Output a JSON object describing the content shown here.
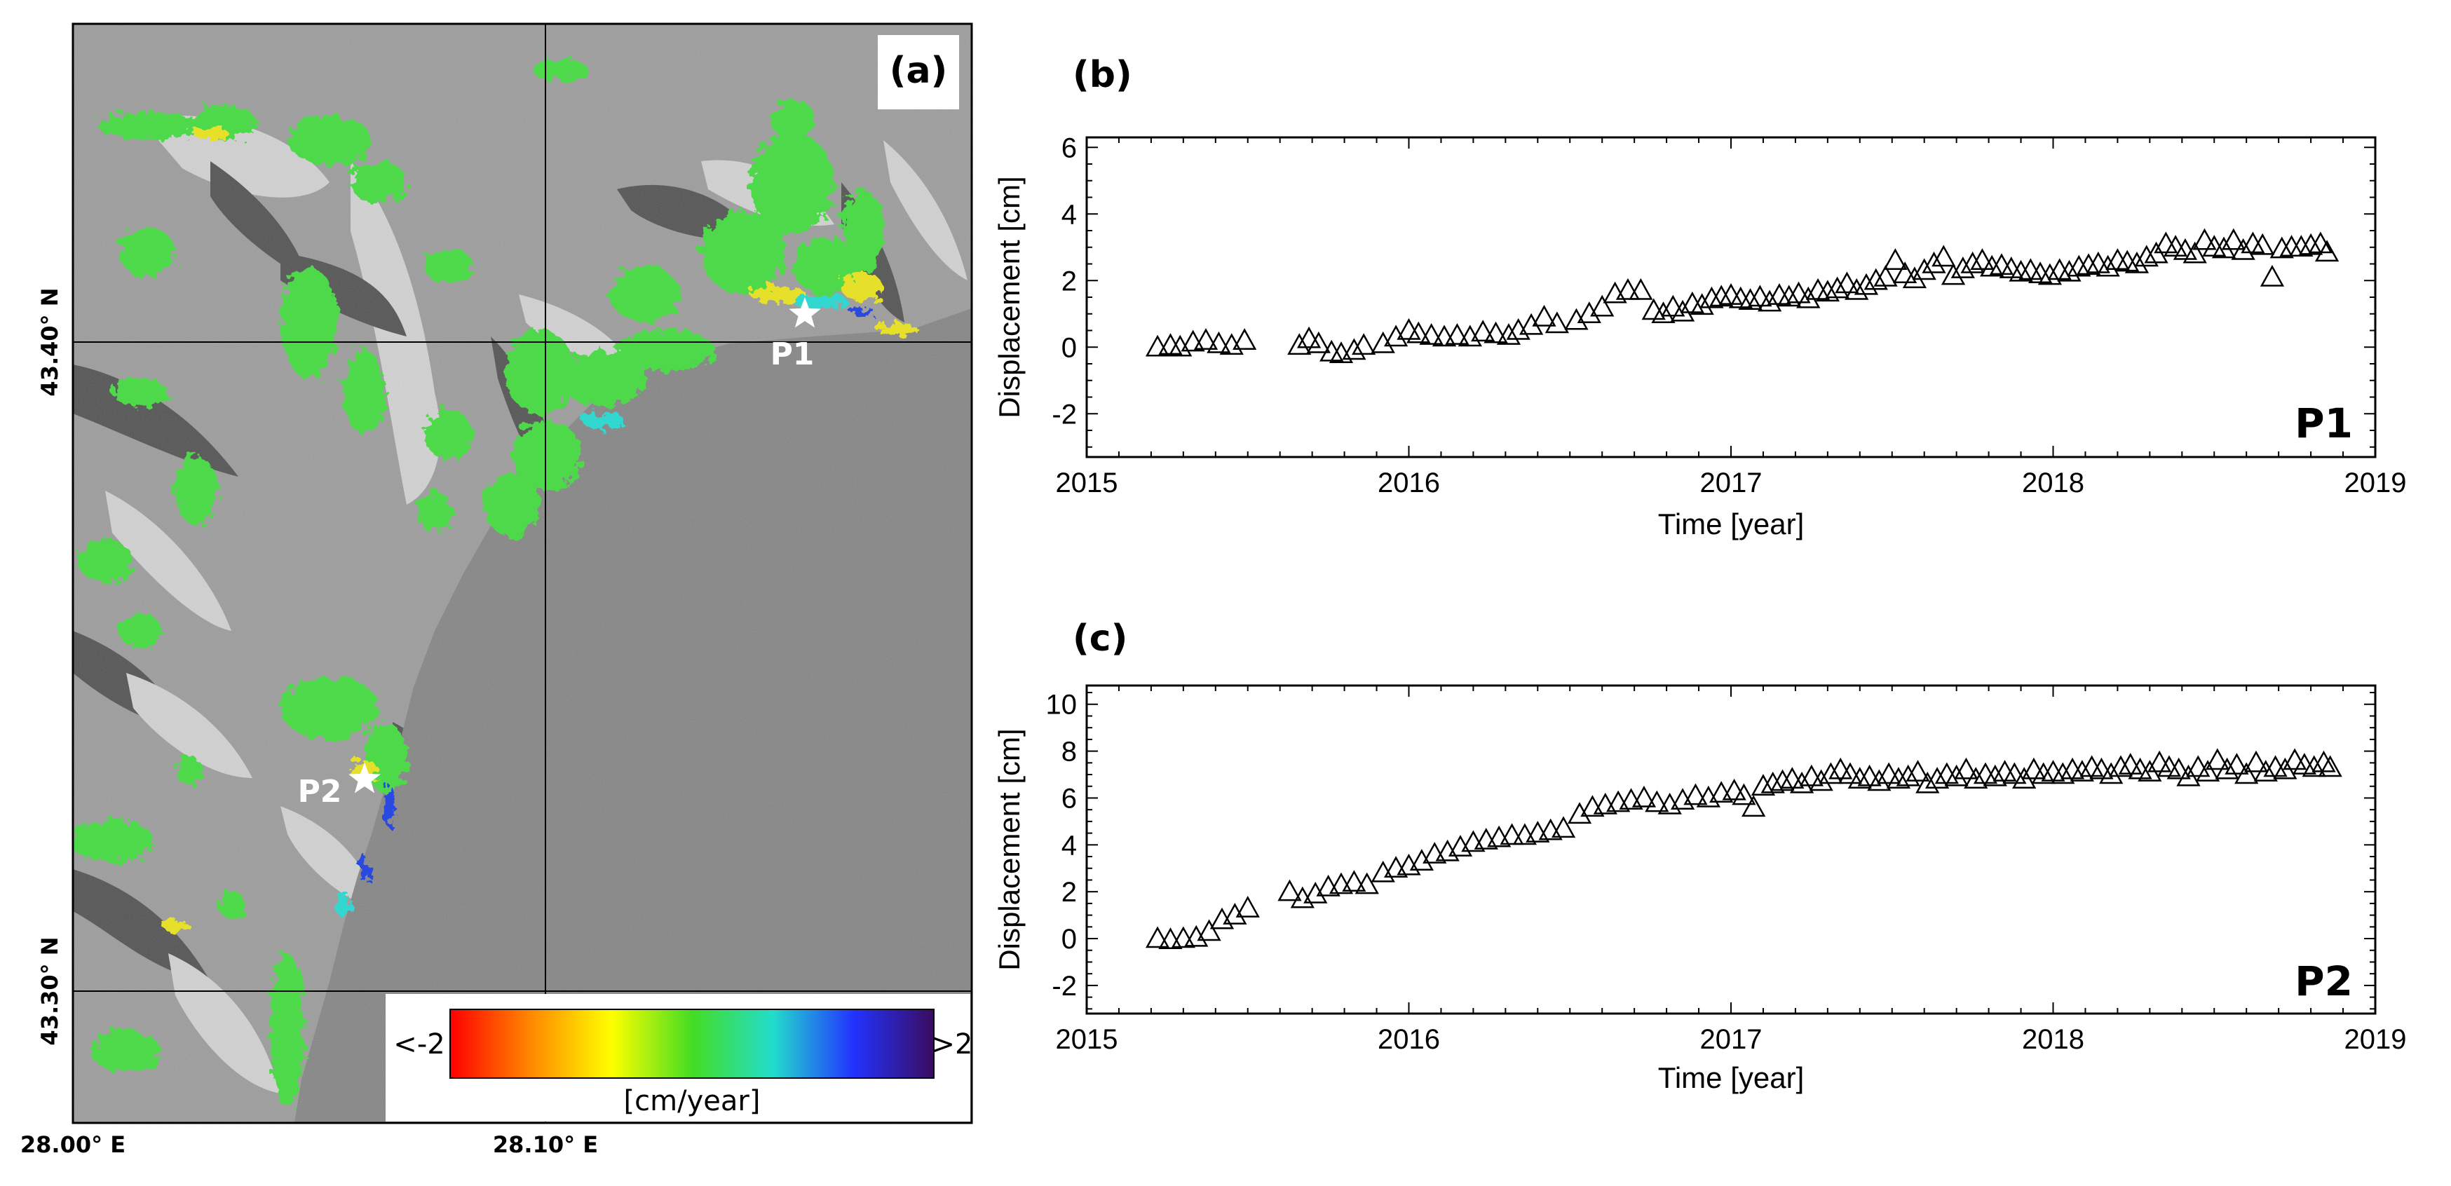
{
  "figure": {
    "map": {
      "panel_label": "(a)",
      "lat_labels": [
        "43.40° N",
        "43.30° N"
      ],
      "lon_labels": [
        "28.00° E",
        "28.10° E"
      ],
      "points": [
        {
          "name": "P1",
          "color": "#ffffff"
        },
        {
          "name": "P2",
          "color": "#ffffff"
        }
      ],
      "colorbar": {
        "min_label": "<-2",
        "max_label": ">2",
        "unit": "[cm/year]",
        "colors": [
          "#ff0000",
          "#ff8800",
          "#ffff00",
          "#44dd22",
          "#22ddcc",
          "#2233ff",
          "#3a0c60"
        ]
      },
      "colors": {
        "sea": "#858585",
        "land": "#9c9c9c",
        "shade_light": "#d8d8d8",
        "shade_dark": "#4a4a4a",
        "velocity_green": "#4ed94a",
        "velocity_yellow": "#e6e02a",
        "velocity_cyan": "#30d8d0",
        "velocity_blue": "#2a4ae0"
      }
    }
  },
  "chart_data": [
    {
      "type": "scatter",
      "panel_label": "(b)",
      "point_label": "P1",
      "marker": "open-triangle",
      "title": "",
      "xlabel": "Time [year]",
      "ylabel": "Displacement [cm]",
      "xlim": [
        2015,
        2019
      ],
      "ylim": [
        -3.3,
        6.3
      ],
      "xticks": [
        2015,
        2016,
        2017,
        2018,
        2019
      ],
      "yticks": [
        -2,
        0,
        2,
        4,
        6
      ],
      "grid": false,
      "x": [
        2015.22,
        2015.26,
        2015.29,
        2015.33,
        2015.37,
        2015.41,
        2015.45,
        2015.49,
        2015.66,
        2015.69,
        2015.72,
        2015.76,
        2015.79,
        2015.83,
        2015.86,
        2015.92,
        2015.96,
        2016.0,
        2016.03,
        2016.07,
        2016.11,
        2016.15,
        2016.19,
        2016.23,
        2016.27,
        2016.31,
        2016.34,
        2016.38,
        2016.42,
        2016.46,
        2016.52,
        2016.56,
        2016.6,
        2016.64,
        2016.68,
        2016.72,
        2016.76,
        2016.79,
        2016.82,
        2016.85,
        2016.88,
        2016.91,
        2016.94,
        2016.97,
        2017.0,
        2017.03,
        2017.06,
        2017.09,
        2017.12,
        2017.15,
        2017.18,
        2017.21,
        2017.24,
        2017.27,
        2017.3,
        2017.33,
        2017.36,
        2017.39,
        2017.42,
        2017.45,
        2017.48,
        2017.51,
        2017.54,
        2017.57,
        2017.6,
        2017.63,
        2017.66,
        2017.69,
        2017.72,
        2017.75,
        2017.78,
        2017.81,
        2017.84,
        2017.87,
        2017.9,
        2017.93,
        2017.96,
        2017.99,
        2018.02,
        2018.05,
        2018.08,
        2018.11,
        2018.14,
        2018.17,
        2018.2,
        2018.23,
        2018.26,
        2018.29,
        2018.32,
        2018.35,
        2018.38,
        2018.41,
        2018.44,
        2018.47,
        2018.5,
        2018.53,
        2018.56,
        2018.59,
        2018.62,
        2018.65,
        2018.68,
        2018.71,
        2018.74,
        2018.77,
        2018.8,
        2018.83,
        2018.85
      ],
      "y": [
        0.0,
        0.05,
        0.0,
        0.15,
        0.2,
        0.1,
        0.05,
        0.2,
        0.05,
        0.25,
        0.1,
        -0.15,
        -0.2,
        -0.1,
        0.05,
        0.1,
        0.3,
        0.5,
        0.4,
        0.35,
        0.3,
        0.35,
        0.3,
        0.45,
        0.4,
        0.35,
        0.5,
        0.65,
        0.9,
        0.7,
        0.8,
        1.0,
        1.2,
        1.6,
        1.7,
        1.7,
        1.1,
        1.0,
        1.2,
        1.05,
        1.3,
        1.25,
        1.45,
        1.5,
        1.55,
        1.45,
        1.4,
        1.5,
        1.35,
        1.55,
        1.5,
        1.6,
        1.45,
        1.7,
        1.65,
        1.75,
        1.9,
        1.7,
        1.85,
        2.0,
        2.1,
        2.6,
        2.2,
        2.05,
        2.3,
        2.5,
        2.7,
        2.15,
        2.35,
        2.5,
        2.6,
        2.4,
        2.45,
        2.35,
        2.25,
        2.3,
        2.2,
        2.15,
        2.3,
        2.25,
        2.4,
        2.45,
        2.5,
        2.4,
        2.6,
        2.55,
        2.5,
        2.7,
        2.8,
        3.1,
        3.0,
        2.9,
        2.8,
        3.2,
        3.0,
        2.95,
        3.2,
        2.9,
        3.1,
        3.05,
        2.1,
        2.95,
        3.0,
        3.0,
        3.05,
        3.1,
        2.85
      ]
    },
    {
      "type": "scatter",
      "panel_label": "(c)",
      "point_label": "P2",
      "marker": "open-triangle",
      "title": "",
      "xlabel": "Time [year]",
      "ylabel": "Displacement [cm]",
      "xlim": [
        2015,
        2019
      ],
      "ylim": [
        -3.2,
        10.8
      ],
      "xticks": [
        2015,
        2016,
        2017,
        2018,
        2019
      ],
      "yticks": [
        -2,
        0,
        2,
        4,
        6,
        8,
        10
      ],
      "grid": false,
      "x": [
        2015.22,
        2015.26,
        2015.3,
        2015.34,
        2015.38,
        2015.42,
        2015.46,
        2015.5,
        2015.63,
        2015.67,
        2015.71,
        2015.75,
        2015.79,
        2015.83,
        2015.87,
        2015.92,
        2015.96,
        2016.0,
        2016.04,
        2016.08,
        2016.12,
        2016.16,
        2016.2,
        2016.24,
        2016.28,
        2016.32,
        2016.36,
        2016.4,
        2016.44,
        2016.48,
        2016.53,
        2016.57,
        2016.61,
        2016.65,
        2016.69,
        2016.73,
        2016.77,
        2016.81,
        2016.85,
        2016.89,
        2016.93,
        2016.97,
        2017.01,
        2017.04,
        2017.07,
        2017.1,
        2017.13,
        2017.16,
        2017.19,
        2017.22,
        2017.25,
        2017.28,
        2017.31,
        2017.34,
        2017.37,
        2017.4,
        2017.43,
        2017.46,
        2017.49,
        2017.52,
        2017.55,
        2017.58,
        2017.61,
        2017.64,
        2017.67,
        2017.7,
        2017.73,
        2017.76,
        2017.79,
        2017.82,
        2017.85,
        2017.88,
        2017.91,
        2017.94,
        2017.97,
        2018.0,
        2018.03,
        2018.06,
        2018.09,
        2018.12,
        2018.15,
        2018.18,
        2018.21,
        2018.24,
        2018.27,
        2018.3,
        2018.33,
        2018.36,
        2018.39,
        2018.42,
        2018.45,
        2018.48,
        2018.51,
        2018.54,
        2018.57,
        2018.6,
        2018.63,
        2018.66,
        2018.69,
        2018.72,
        2018.75,
        2018.78,
        2018.81,
        2018.84,
        2018.86
      ],
      "y": [
        0.0,
        -0.05,
        0.0,
        0.05,
        0.3,
        0.8,
        1.0,
        1.3,
        2.0,
        1.7,
        1.9,
        2.2,
        2.3,
        2.4,
        2.3,
        2.8,
        3.0,
        3.1,
        3.3,
        3.6,
        3.7,
        3.9,
        4.1,
        4.2,
        4.3,
        4.4,
        4.4,
        4.5,
        4.6,
        4.7,
        5.3,
        5.6,
        5.7,
        5.8,
        5.9,
        6.0,
        5.8,
        5.7,
        5.9,
        6.1,
        6.0,
        6.2,
        6.3,
        6.1,
        5.6,
        6.5,
        6.6,
        6.7,
        6.8,
        6.6,
        6.9,
        6.7,
        7.0,
        7.2,
        7.0,
        6.8,
        6.9,
        6.7,
        7.0,
        6.8,
        6.9,
        7.1,
        6.6,
        6.8,
        7.0,
        6.9,
        7.2,
        6.8,
        7.0,
        6.9,
        7.1,
        7.0,
        6.8,
        7.2,
        7.0,
        7.1,
        7.0,
        7.2,
        7.1,
        7.3,
        7.2,
        7.0,
        7.3,
        7.4,
        7.2,
        7.1,
        7.5,
        7.3,
        7.2,
        6.9,
        7.3,
        7.1,
        7.6,
        7.2,
        7.4,
        7.0,
        7.5,
        7.1,
        7.3,
        7.2,
        7.6,
        7.4,
        7.3,
        7.5,
        7.3
      ]
    }
  ]
}
